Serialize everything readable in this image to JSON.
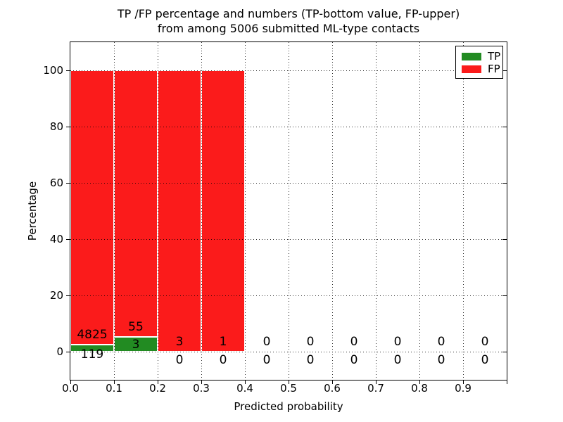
{
  "figure": {
    "background": "#ffffff",
    "title_line1": "TP /FP percentage and numbers (TP-bottom value, FP-upper)",
    "title_line2": "from among 5006 submitted ML-type contacts"
  },
  "chart_data": {
    "type": "bar",
    "stacked": true,
    "title": "TP /FP percentage and numbers (TP-bottom value, FP-upper)",
    "subtitle": "from among 5006 submitted ML-type contacts",
    "xlabel": "Predicted probability",
    "ylabel": "Percentage",
    "xlim": [
      0.0,
      1.0
    ],
    "ylim": [
      -10,
      110
    ],
    "xticks": [
      "0.0",
      "0.1",
      "0.2",
      "0.3",
      "0.4",
      "0.5",
      "0.6",
      "0.7",
      "0.8",
      "0.9"
    ],
    "yticks": [
      "0",
      "20",
      "40",
      "60",
      "80",
      "100"
    ],
    "grid": "dotted, both axes, drawn above bars",
    "bin_width": 0.1,
    "value_unit": "percentage of bin total (each non-empty bin stacks to 100%)",
    "series": [
      {
        "name": "TP",
        "color": "#228b22",
        "position": "bottom"
      },
      {
        "name": "FP",
        "color": "#fb1b1b",
        "position": "upper"
      }
    ],
    "bins": [
      {
        "x_start": 0.0,
        "x_end": 0.1,
        "tp": 119,
        "fp": 4825
      },
      {
        "x_start": 0.1,
        "x_end": 0.2,
        "tp": 3,
        "fp": 55
      },
      {
        "x_start": 0.2,
        "x_end": 0.3,
        "tp": 0,
        "fp": 3
      },
      {
        "x_start": 0.3,
        "x_end": 0.4,
        "tp": 0,
        "fp": 1
      },
      {
        "x_start": 0.4,
        "x_end": 0.5,
        "tp": 0,
        "fp": 0
      },
      {
        "x_start": 0.5,
        "x_end": 0.6,
        "tp": 0,
        "fp": 0
      },
      {
        "x_start": 0.6,
        "x_end": 0.7,
        "tp": 0,
        "fp": 0
      },
      {
        "x_start": 0.7,
        "x_end": 0.8,
        "tp": 0,
        "fp": 0
      },
      {
        "x_start": 0.8,
        "x_end": 0.9,
        "tp": 0,
        "fp": 0
      },
      {
        "x_start": 0.9,
        "x_end": 1.0,
        "tp": 0,
        "fp": 0
      }
    ],
    "legend": {
      "position": "upper right",
      "entries": [
        {
          "label": "TP",
          "color": "#228b22"
        },
        {
          "label": "FP",
          "color": "#fb1b1b"
        }
      ]
    }
  },
  "colors": {
    "tp_green": "#228b22",
    "fp_red": "#fb1b1b",
    "frame": "#000000",
    "background": "#ffffff",
    "bar_edge": "#ffffff"
  }
}
